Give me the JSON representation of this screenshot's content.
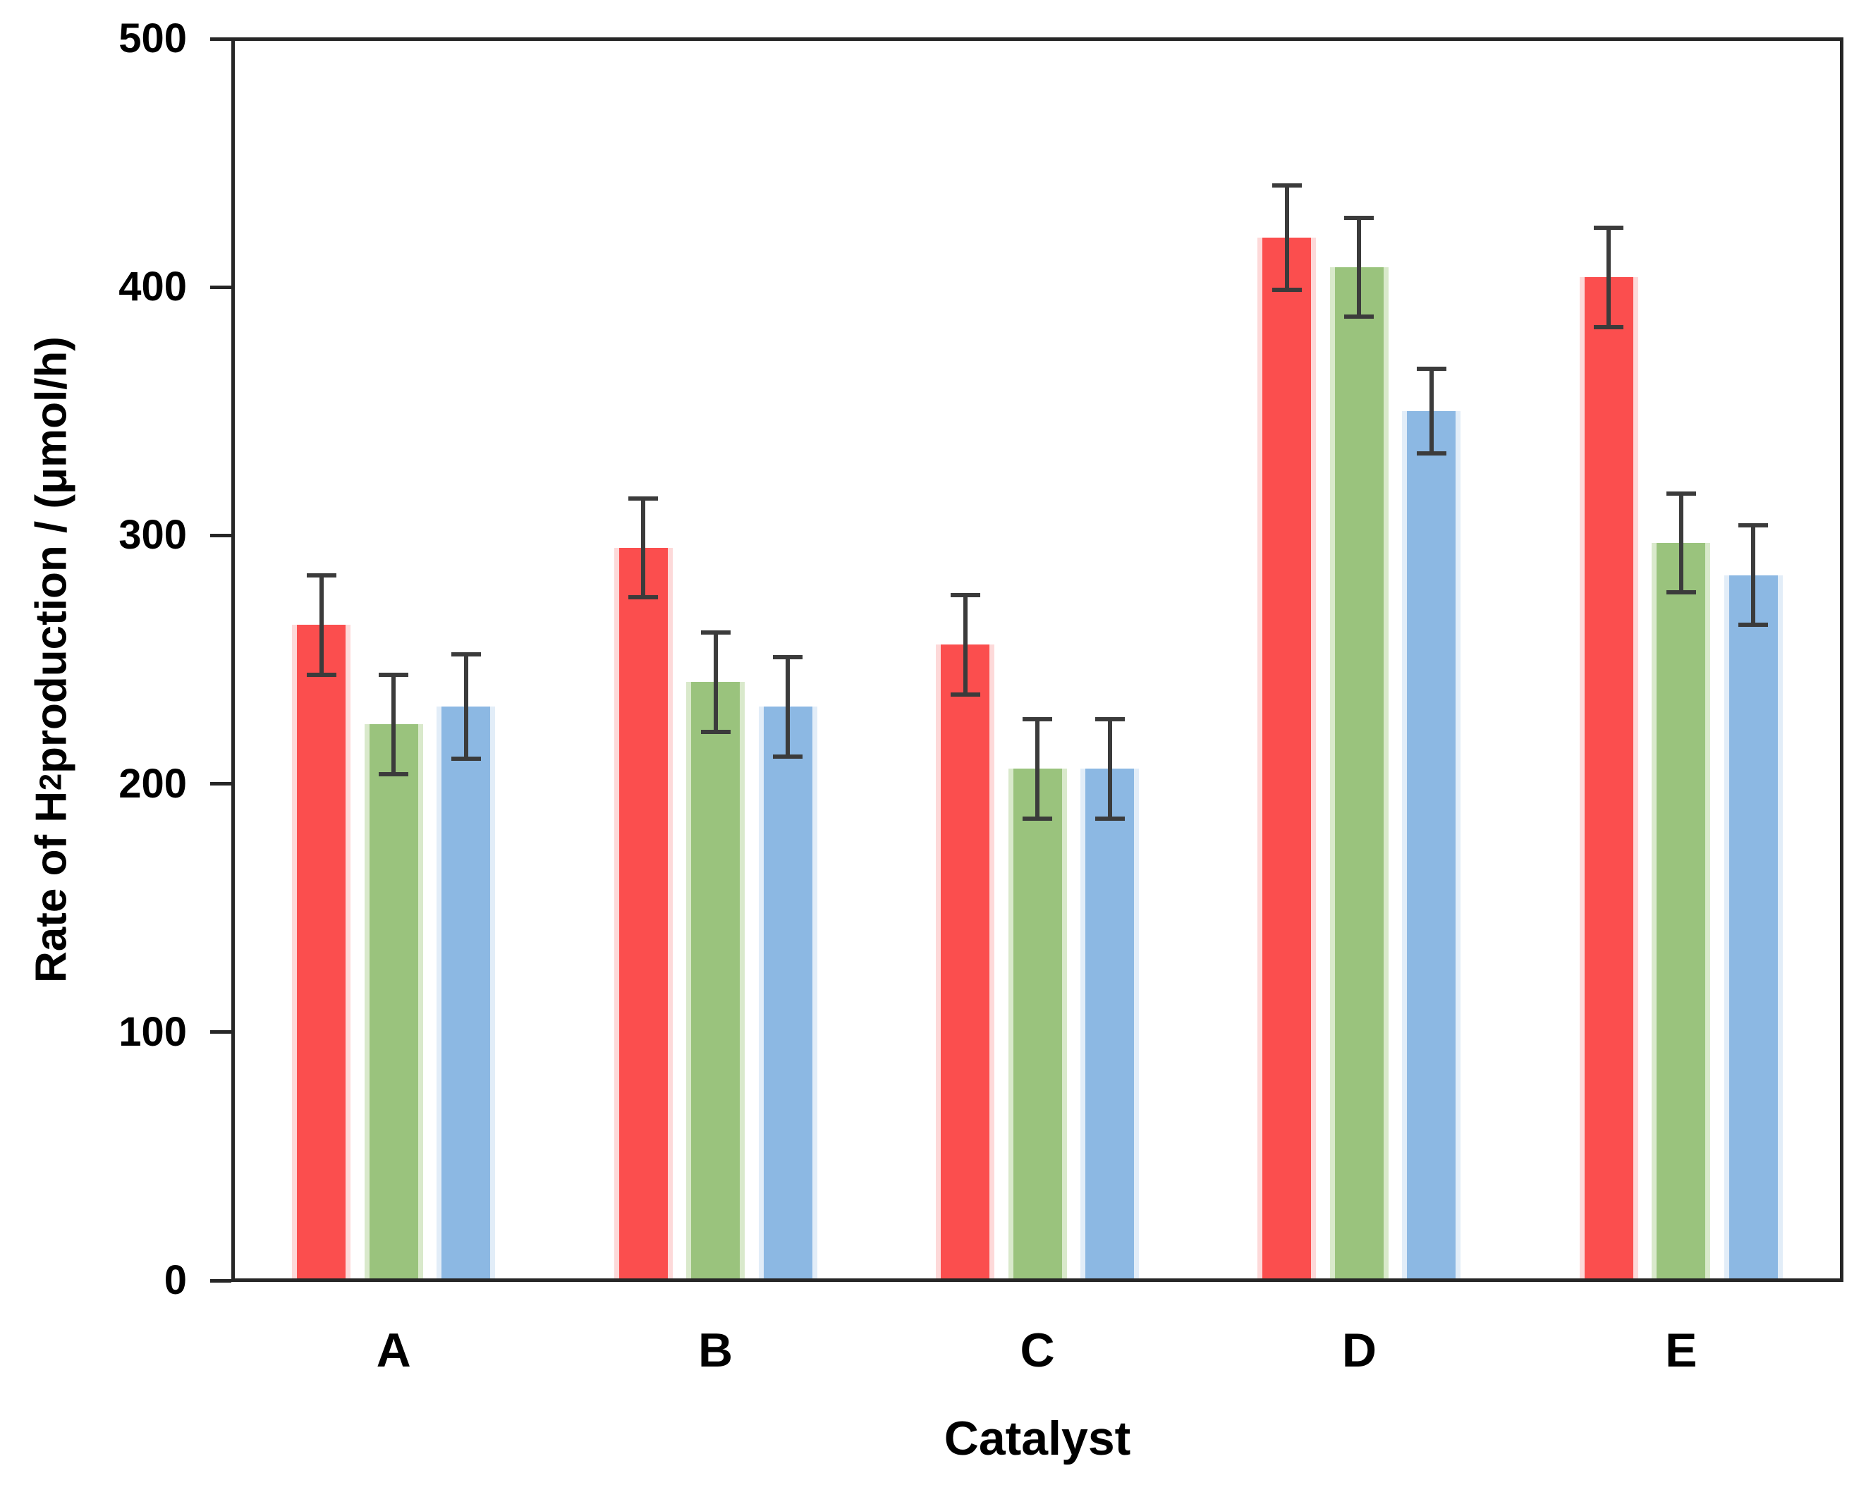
{
  "figure": {
    "background_color": "#ffffff",
    "axis_color": "#262626",
    "error_bar_color": "#3b3b3b",
    "text_color": "#000000"
  },
  "chart_data": {
    "type": "bar",
    "title": "",
    "xlabel": "Catalyst",
    "ylabel_text": "Rate of H2 production / (μmol/h)",
    "ylabel_parts": {
      "prefix": "Rate of H",
      "sub": "2",
      "suffix": " production / (μmol/h)"
    },
    "categories": [
      "A",
      "B",
      "C",
      "D",
      "E"
    ],
    "series": [
      {
        "name": "red",
        "color": "#fb4e4e",
        "edge_tint": "#fdd9d9",
        "values": [
          264,
          295,
          256,
          420,
          404
        ],
        "errors": [
          20,
          20,
          20,
          21,
          20
        ]
      },
      {
        "name": "green",
        "color": "#9ac37d",
        "edge_tint": "#d9e9cb",
        "values": [
          224,
          241,
          206,
          408,
          297
        ],
        "errors": [
          20,
          20,
          20,
          20,
          20
        ]
      },
      {
        "name": "blue",
        "color": "#8cb8e3",
        "edge_tint": "#e2edf8",
        "values": [
          231,
          231,
          206,
          350,
          284
        ],
        "errors": [
          21,
          20,
          20,
          17,
          20
        ]
      }
    ],
    "ylim": [
      0,
      500
    ],
    "ytick_step": 100,
    "yticks": [
      "0",
      "100",
      "200",
      "300",
      "400",
      "500"
    ],
    "grid": false,
    "legend": false,
    "error_bars": true,
    "frame": "full-box"
  }
}
